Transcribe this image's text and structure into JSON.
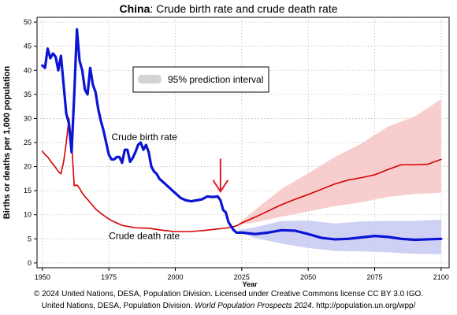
{
  "title": {
    "country": "China",
    "rest": ": Crude birth rate and crude death rate"
  },
  "footer": {
    "line1": "© 2024 United Nations, DESA, Population Division. Licensed under Creative Commons license CC BY 3.0 IGO.",
    "line2_pre": "United Nations, DESA, Population Division. ",
    "line2_italic": "World Population Prospects 2024",
    "line2_post": ". http://population.un.org/wpp/"
  },
  "colors": {
    "birth": "#0a14d2",
    "death": "#d40000",
    "birth_band": "#c6c8f2",
    "death_band": "#f7c4c4",
    "arrow": "#e0182a",
    "legend_swatch": "#d3d3d3",
    "grid": "#bdbdbd"
  },
  "chart_data": {
    "type": "line",
    "title": "China: Crude birth rate and crude death rate",
    "xlabel": "Year",
    "ylabel": "Births or deaths per 1,000 population",
    "xlim": [
      1948,
      2103
    ],
    "ylim": [
      -1,
      51
    ],
    "x_ticks": [
      1950,
      1975,
      2000,
      2025,
      2050,
      2075,
      2100
    ],
    "y_ticks": [
      0,
      5,
      10,
      15,
      20,
      25,
      30,
      35,
      40,
      45,
      50
    ],
    "grid": true,
    "legend": {
      "label": "95% prediction interval",
      "placement": "top-center"
    },
    "annotations": [
      {
        "text": "Crude birth rate",
        "x": 1976,
        "y": 25.5
      },
      {
        "text": "Crude death rate",
        "x": 1975,
        "y": 5.0
      }
    ],
    "arrow": {
      "x": 2017,
      "y_from": 21.5,
      "y_to": 14.8
    },
    "series": [
      {
        "name": "Crude birth rate",
        "points": [
          [
            1950,
            41.0
          ],
          [
            1951,
            40.5
          ],
          [
            1952,
            44.5
          ],
          [
            1953,
            42.5
          ],
          [
            1954,
            43.5
          ],
          [
            1955,
            42.8
          ],
          [
            1956,
            40.0
          ],
          [
            1957,
            43.0
          ],
          [
            1958,
            37.0
          ],
          [
            1959,
            31.0
          ],
          [
            1960,
            29.0
          ],
          [
            1961,
            23.0
          ],
          [
            1962,
            35.0
          ],
          [
            1963,
            48.5
          ],
          [
            1964,
            42.0
          ],
          [
            1965,
            40.0
          ],
          [
            1966,
            36.0
          ],
          [
            1967,
            35.0
          ],
          [
            1968,
            40.5
          ],
          [
            1969,
            37.0
          ],
          [
            1970,
            35.5
          ],
          [
            1971,
            32.0
          ],
          [
            1972,
            29.5
          ],
          [
            1973,
            27.5
          ],
          [
            1974,
            25.0
          ],
          [
            1975,
            22.5
          ],
          [
            1976,
            21.5
          ],
          [
            1977,
            21.5
          ],
          [
            1978,
            22.0
          ],
          [
            1979,
            22.0
          ],
          [
            1980,
            20.8
          ],
          [
            1981,
            23.5
          ],
          [
            1982,
            23.5
          ],
          [
            1983,
            21.0
          ],
          [
            1984,
            21.8
          ],
          [
            1985,
            23.0
          ],
          [
            1986,
            24.5
          ],
          [
            1987,
            25.0
          ],
          [
            1988,
            23.5
          ],
          [
            1989,
            24.5
          ],
          [
            1990,
            23.0
          ],
          [
            1991,
            20.0
          ],
          [
            1992,
            19.0
          ],
          [
            1993,
            18.5
          ],
          [
            1994,
            17.5
          ],
          [
            1995,
            17.0
          ],
          [
            1996,
            16.5
          ],
          [
            1997,
            16.0
          ],
          [
            1998,
            15.5
          ],
          [
            1999,
            15.0
          ],
          [
            2000,
            14.5
          ],
          [
            2002,
            13.5
          ],
          [
            2004,
            13.0
          ],
          [
            2006,
            12.8
          ],
          [
            2008,
            13.0
          ],
          [
            2010,
            13.2
          ],
          [
            2012,
            13.8
          ],
          [
            2014,
            13.7
          ],
          [
            2016,
            13.8
          ],
          [
            2017,
            13.0
          ],
          [
            2018,
            11.0
          ],
          [
            2019,
            10.5
          ],
          [
            2020,
            8.5
          ],
          [
            2021,
            7.6
          ],
          [
            2022,
            6.8
          ],
          [
            2023,
            6.3
          ],
          [
            2025,
            6.3
          ],
          [
            2030,
            6.0
          ],
          [
            2035,
            6.3
          ],
          [
            2040,
            6.8
          ],
          [
            2045,
            6.7
          ],
          [
            2050,
            6.0
          ],
          [
            2055,
            5.2
          ],
          [
            2060,
            4.9
          ],
          [
            2065,
            5.0
          ],
          [
            2070,
            5.3
          ],
          [
            2075,
            5.6
          ],
          [
            2080,
            5.4
          ],
          [
            2085,
            5.0
          ],
          [
            2090,
            4.8
          ],
          [
            2095,
            4.9
          ],
          [
            2100,
            5.0
          ]
        ]
      },
      {
        "name": "Crude death rate",
        "points": [
          [
            1950,
            23.2
          ],
          [
            1951,
            22.5
          ],
          [
            1952,
            22.0
          ],
          [
            1953,
            21.2
          ],
          [
            1954,
            20.5
          ],
          [
            1955,
            19.8
          ],
          [
            1956,
            19.0
          ],
          [
            1957,
            18.5
          ],
          [
            1958,
            21.0
          ],
          [
            1959,
            25.0
          ],
          [
            1960,
            30.0
          ],
          [
            1961,
            25.0
          ],
          [
            1962,
            16.0
          ],
          [
            1963,
            16.2
          ],
          [
            1964,
            15.5
          ],
          [
            1965,
            14.5
          ],
          [
            1966,
            13.8
          ],
          [
            1967,
            13.2
          ],
          [
            1968,
            12.5
          ],
          [
            1969,
            11.9
          ],
          [
            1970,
            11.2
          ],
          [
            1972,
            10.3
          ],
          [
            1974,
            9.5
          ],
          [
            1976,
            8.8
          ],
          [
            1978,
            8.3
          ],
          [
            1980,
            7.8
          ],
          [
            1985,
            7.3
          ],
          [
            1990,
            7.2
          ],
          [
            1995,
            6.8
          ],
          [
            2000,
            6.5
          ],
          [
            2005,
            6.5
          ],
          [
            2010,
            6.7
          ],
          [
            2015,
            7.0
          ],
          [
            2020,
            7.3
          ],
          [
            2023,
            7.7
          ],
          [
            2025,
            8.3
          ],
          [
            2030,
            9.5
          ],
          [
            2035,
            10.8
          ],
          [
            2040,
            12.1
          ],
          [
            2045,
            13.2
          ],
          [
            2050,
            14.2
          ],
          [
            2055,
            15.3
          ],
          [
            2060,
            16.4
          ],
          [
            2065,
            17.2
          ],
          [
            2070,
            17.7
          ],
          [
            2075,
            18.3
          ],
          [
            2080,
            19.4
          ],
          [
            2085,
            20.4
          ],
          [
            2090,
            20.4
          ],
          [
            2095,
            20.5
          ],
          [
            2100,
            21.5
          ]
        ]
      }
    ],
    "prediction_intervals": [
      {
        "for": "Crude birth rate",
        "points": [
          [
            2024,
            6.3,
            6.8
          ],
          [
            2030,
            5.2,
            7.4
          ],
          [
            2040,
            4.0,
            8.7
          ],
          [
            2050,
            3.1,
            8.8
          ],
          [
            2060,
            2.5,
            8.2
          ],
          [
            2070,
            2.4,
            8.6
          ],
          [
            2080,
            2.2,
            8.7
          ],
          [
            2090,
            1.9,
            8.7
          ],
          [
            2100,
            1.8,
            9.0
          ]
        ]
      },
      {
        "for": "Crude death rate",
        "points": [
          [
            2024,
            7.9,
            8.3
          ],
          [
            2030,
            8.4,
            11.0
          ],
          [
            2040,
            9.6,
            15.4
          ],
          [
            2050,
            10.7,
            18.6
          ],
          [
            2060,
            11.8,
            22.0
          ],
          [
            2070,
            12.6,
            24.8
          ],
          [
            2080,
            13.7,
            28.3
          ],
          [
            2090,
            14.3,
            30.4
          ],
          [
            2100,
            14.6,
            34.0
          ]
        ]
      }
    ]
  }
}
